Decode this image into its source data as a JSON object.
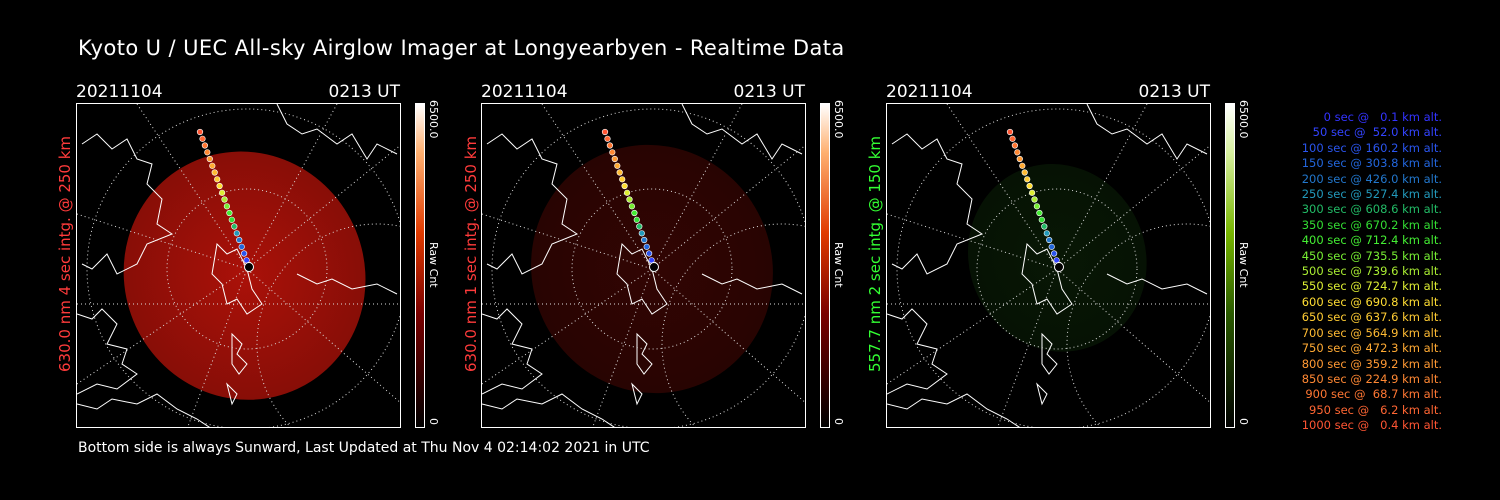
{
  "title": "Kyoto U / UEC All-sky Airglow Imager at Longyearbyen - Realtime Data",
  "footer": "Bottom side is always Sunward, Last Updated at Thu Nov  4 02:14:02 2021 in UTC",
  "panels": [
    {
      "date": "20211104",
      "time": "0213 UT",
      "side_label": "630.0 nm 4 sec intg. @ 250 km",
      "label_color": "#ff3b3b",
      "colorbar_max": "6500.0",
      "colorbar_unit": "Raw Cnt",
      "colorbar_min": "0",
      "colormap": "red",
      "brightness": 0.85
    },
    {
      "date": "20211104",
      "time": "0213 UT",
      "side_label": "630.0 nm 1 sec intg. @ 250 km",
      "label_color": "#ff3b3b",
      "colorbar_max": "6500.0",
      "colorbar_unit": "Raw Cnt",
      "colorbar_min": "0",
      "colormap": "red",
      "brightness": 0.25
    },
    {
      "date": "20211104",
      "time": "0213 UT",
      "side_label": "557.7 nm 2 sec intg. @ 150 km",
      "label_color": "#33ff33",
      "colorbar_max": "6500.0",
      "colorbar_unit": "Raw Cnt",
      "colorbar_min": "0",
      "colormap": "green",
      "brightness": 0.25
    }
  ],
  "legend": [
    {
      "text": "0 sec @   0.1 km alt.",
      "color": "#3333ff"
    },
    {
      "text": "50 sec @  52.0 km alt.",
      "color": "#3344ff"
    },
    {
      "text": "100 sec @ 160.2 km alt.",
      "color": "#2a55ee"
    },
    {
      "text": "150 sec @ 303.8 km alt.",
      "color": "#2266dd"
    },
    {
      "text": "200 sec @ 426.0 km alt.",
      "color": "#2277cc"
    },
    {
      "text": "250 sec @ 527.4 km alt.",
      "color": "#2299bb"
    },
    {
      "text": "300 sec @ 608.6 km alt.",
      "color": "#22bb66"
    },
    {
      "text": "350 sec @ 670.2 km alt.",
      "color": "#33dd33"
    },
    {
      "text": "400 sec @ 712.4 km alt.",
      "color": "#44ee33"
    },
    {
      "text": "450 sec @ 735.5 km alt.",
      "color": "#77ee33"
    },
    {
      "text": "500 sec @ 739.6 km alt.",
      "color": "#aaee33"
    },
    {
      "text": "550 sec @ 724.7 km alt.",
      "color": "#ddee33"
    },
    {
      "text": "600 sec @ 690.8 km alt.",
      "color": "#ffdd33"
    },
    {
      "text": "650 sec @ 637.6 km alt.",
      "color": "#ffcc33"
    },
    {
      "text": "700 sec @ 564.9 km alt.",
      "color": "#ffbb33"
    },
    {
      "text": "750 sec @ 472.3 km alt.",
      "color": "#ffaa33"
    },
    {
      "text": "800 sec @ 359.2 km alt.",
      "color": "#ff9933"
    },
    {
      "text": "850 sec @ 224.9 km alt.",
      "color": "#ff8833"
    },
    {
      "text": "900 sec @  68.7 km alt.",
      "color": "#ff7733"
    },
    {
      "text": "950 sec @   6.2 km alt.",
      "color": "#ff6633"
    },
    {
      "text": "1000 sec @   0.4 km alt.",
      "color": "#ff5533"
    }
  ]
}
